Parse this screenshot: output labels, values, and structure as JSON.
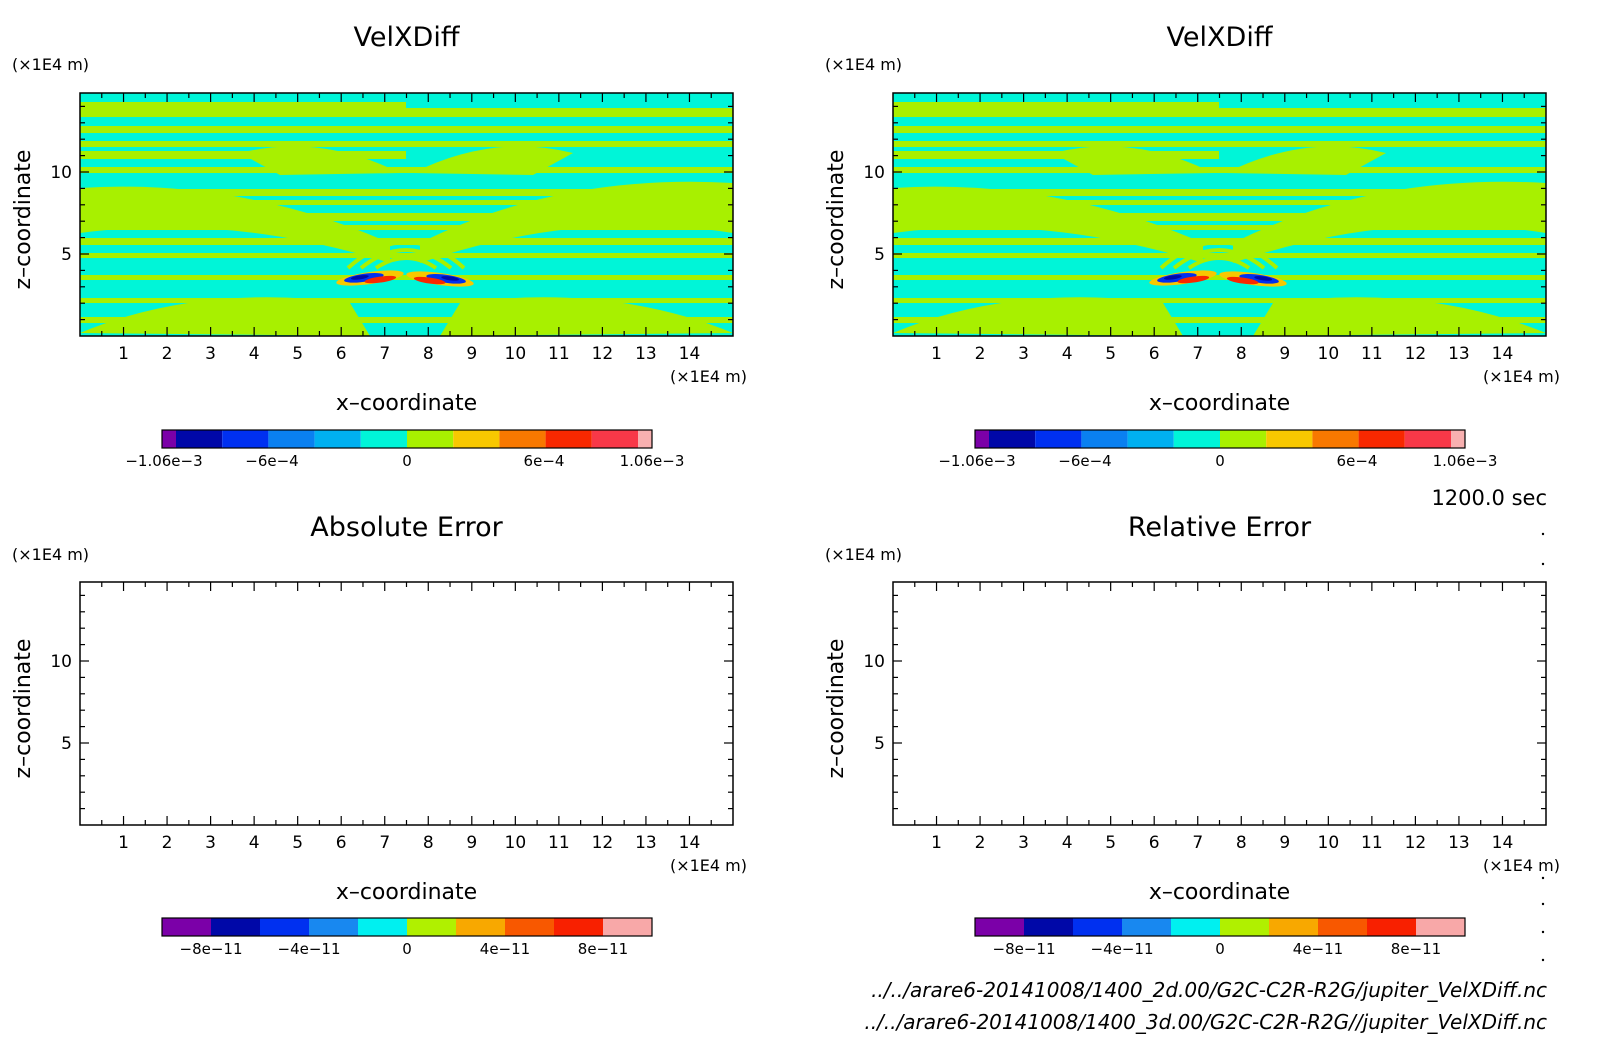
{
  "panels": [
    {
      "title": "VelXDiff",
      "y_unit": "(×1E4 m)",
      "x_unit": "(×1E4 m)",
      "xlabel": "x–coordinate",
      "ylabel": "z–coordinate",
      "x_ticks": [
        "1",
        "2",
        "3",
        "4",
        "5",
        "6",
        "7",
        "8",
        "9",
        "10",
        "11",
        "12",
        "13",
        "14"
      ],
      "y_ticks": [
        "5",
        "10"
      ],
      "colorbar_labels": [
        "-1.06e-3",
        "-6e-4",
        "0",
        "6e-4",
        "1.06e-3"
      ],
      "filled": true
    },
    {
      "title": "VelXDiff",
      "y_unit": "(×1E4 m)",
      "x_unit": "(×1E4 m)",
      "xlabel": "x–coordinate",
      "ylabel": "z–coordinate",
      "x_ticks": [
        "1",
        "2",
        "3",
        "4",
        "5",
        "6",
        "7",
        "8",
        "9",
        "10",
        "11",
        "12",
        "13",
        "14"
      ],
      "y_ticks": [
        "5",
        "10"
      ],
      "colorbar_labels": [
        "-1.06e-3",
        "-6e-4",
        "0",
        "6e-4",
        "1.06e-3"
      ],
      "filled": true
    },
    {
      "title": "Absolute Error",
      "y_unit": "(×1E4 m)",
      "x_unit": "(×1E4 m)",
      "xlabel": "x–coordinate",
      "ylabel": "z–coordinate",
      "x_ticks": [
        "1",
        "2",
        "3",
        "4",
        "5",
        "6",
        "7",
        "8",
        "9",
        "10",
        "11",
        "12",
        "13",
        "14"
      ],
      "y_ticks": [
        "5",
        "10"
      ],
      "colorbar_labels": [
        "-8e-11",
        "-4e-11",
        "0",
        "4e-11",
        "8e-11"
      ],
      "filled": false
    },
    {
      "title": "Relative Error",
      "y_unit": "(×1E4 m)",
      "x_unit": "(×1E4 m)",
      "xlabel": "x–coordinate",
      "ylabel": "z–coordinate",
      "x_ticks": [
        "1",
        "2",
        "3",
        "4",
        "5",
        "6",
        "7",
        "8",
        "9",
        "10",
        "11",
        "12",
        "13",
        "14"
      ],
      "y_ticks": [
        "5",
        "10"
      ],
      "colorbar_labels": [
        "-8e-11",
        "-4e-11",
        "0",
        "4e-11",
        "8e-11"
      ],
      "filled": false
    }
  ],
  "time_label": "1200.0 sec",
  "file_paths": [
    "../../arare6-20141008/1400_2d.00/G2C-C2R-R2G/jupiter_VelXDiff.nc",
    "../../arare6-20141008/1400_3d.00/G2C-C2R-R2G//jupiter_VelXDiff.nc"
  ],
  "colors": {
    "colorbar_top": [
      "#7b00a8",
      "#0008a8",
      "#0030f0",
      "#0a80f0",
      "#00b0f0",
      "#00f5d8",
      "#a8f000",
      "#f8c800",
      "#f87800",
      "#f82800",
      "#f83848",
      "#f8b0b0"
    ],
    "colorbar_bottom": [
      "#7b00a8",
      "#0008a8",
      "#0030f0",
      "#1888f0",
      "#00f0f0",
      "#b0f000",
      "#f8a800",
      "#f85800",
      "#f82000",
      "#f8a8a8"
    ],
    "field_cyan": "#00f5d8",
    "field_green": "#a8f000"
  },
  "chart_data": [
    {
      "type": "heatmap",
      "title": "VelXDiff",
      "xlabel": "x–coordinate",
      "ylabel": "z–coordinate",
      "x_unit": "×1E4 m",
      "y_unit": "×1E4 m",
      "xlim": [
        0,
        15
      ],
      "ylim": [
        0,
        15
      ],
      "value_range": [
        -0.00106,
        0.00106
      ]
    },
    {
      "type": "heatmap",
      "title": "VelXDiff",
      "xlabel": "x–coordinate",
      "ylabel": "z–coordinate",
      "x_unit": "×1E4 m",
      "y_unit": "×1E4 m",
      "xlim": [
        0,
        15
      ],
      "ylim": [
        0,
        15
      ],
      "value_range": [
        -0.00106,
        0.00106
      ]
    },
    {
      "type": "heatmap",
      "title": "Absolute Error",
      "xlabel": "x–coordinate",
      "ylabel": "z–coordinate",
      "x_unit": "×1E4 m",
      "y_unit": "×1E4 m",
      "xlim": [
        0,
        15
      ],
      "ylim": [
        0,
        15
      ],
      "value_range": [
        -8e-11,
        8e-11
      ]
    },
    {
      "type": "heatmap",
      "title": "Relative Error",
      "xlabel": "x–coordinate",
      "ylabel": "z–coordinate",
      "x_unit": "×1E4 m",
      "y_unit": "×1E4 m",
      "xlim": [
        0,
        15
      ],
      "ylim": [
        0,
        15
      ],
      "value_range": [
        -8e-11,
        8e-11
      ]
    }
  ]
}
